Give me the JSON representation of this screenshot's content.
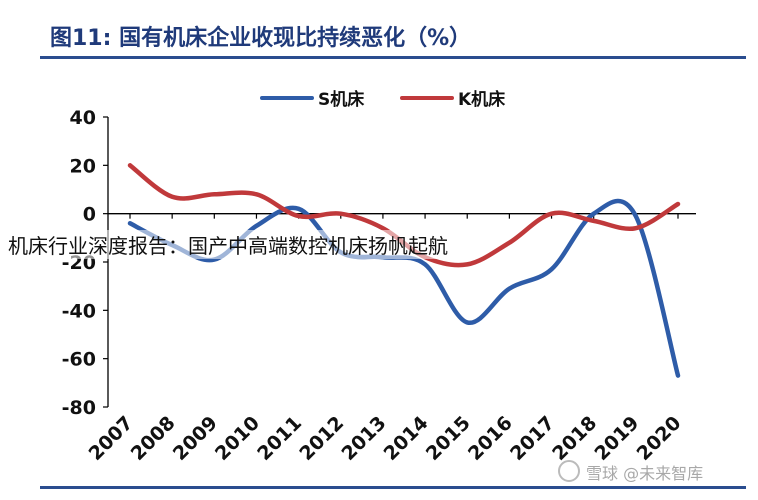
{
  "header": {
    "title": "图11: 国有机床企业收现比持续恶化（%）"
  },
  "overlay": {
    "caption": "机床行业深度报告：国产中高端数控机床扬帆起航"
  },
  "watermark": {
    "text": "雪球 @未来智库",
    "icon": "snowball-icon"
  },
  "colors": {
    "s_series": "#2e5ca8",
    "k_series": "#c0393b",
    "rule": "#2a4d8f",
    "title": "#1f3a7a"
  },
  "chart_data": {
    "type": "line",
    "title": "图11: 国有机床企业收现比持续恶化（%）",
    "categories": [
      "2007",
      "2008",
      "2009",
      "2010",
      "2011",
      "2012",
      "2013",
      "2014",
      "2015",
      "2016",
      "2017",
      "2018",
      "2019",
      "2020"
    ],
    "series": [
      {
        "name": "S机床",
        "color": "#2e5ca8",
        "values": [
          -4,
          -13,
          -19,
          -5,
          2,
          -16,
          -18,
          -21,
          -45,
          -31,
          -23,
          0,
          -1,
          -67
        ]
      },
      {
        "name": "K机床",
        "color": "#c0393b",
        "values": [
          20,
          7,
          8,
          8,
          -1,
          0,
          -6,
          -18,
          -21,
          -12,
          0,
          -3,
          -6,
          4
        ]
      }
    ],
    "y_ticks": [
      40,
      20,
      0,
      -20,
      -40,
      -60,
      -80
    ],
    "ylim": [
      -80,
      40
    ],
    "legend_position": "top-center",
    "grid": false,
    "smooth": true
  }
}
